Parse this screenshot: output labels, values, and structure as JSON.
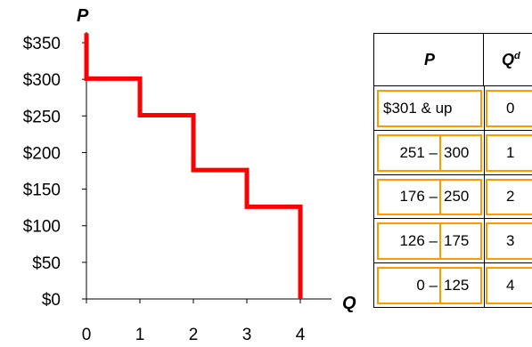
{
  "chart_data": {
    "type": "line",
    "title": "",
    "ylabel": "P",
    "xlabel": "Q",
    "x_ticks": [
      0,
      1,
      2,
      3,
      4
    ],
    "x_tick_labels": [
      "0",
      "1",
      "2",
      "3",
      "4"
    ],
    "y_ticks": [
      0,
      50,
      100,
      150,
      200,
      250,
      300,
      350
    ],
    "y_tick_labels": [
      "$0",
      "$50",
      "$100",
      "$150",
      "$200",
      "$250",
      "$300",
      "$350"
    ],
    "xlim": [
      0,
      4
    ],
    "ylim": [
      0,
      350
    ],
    "series": [
      {
        "step_points": [
          [
            0,
            363
          ],
          [
            0,
            301
          ],
          [
            1,
            301
          ],
          [
            1,
            251
          ],
          [
            2,
            251
          ],
          [
            2,
            176
          ],
          [
            3,
            176
          ],
          [
            3,
            126
          ],
          [
            4,
            126
          ],
          [
            4,
            0
          ]
        ],
        "color": "#ff0000"
      }
    ],
    "grid": false
  },
  "table": {
    "header": {
      "p": "P",
      "qd_base": "Q",
      "qd_sup": "d"
    },
    "rows": [
      {
        "price_a": "$301 & up",
        "price_dash": "",
        "price_b": "",
        "qd": "0"
      },
      {
        "price_a": "251",
        "price_dash": "–",
        "price_b": "300",
        "qd": "1"
      },
      {
        "price_a": "176",
        "price_dash": "–",
        "price_b": "250",
        "qd": "2"
      },
      {
        "price_a": "126",
        "price_dash": "–",
        "price_b": "175",
        "qd": "3"
      },
      {
        "price_a": "0",
        "price_dash": "–",
        "price_b": "125",
        "qd": "4"
      }
    ],
    "border_color": "#ff9900"
  }
}
